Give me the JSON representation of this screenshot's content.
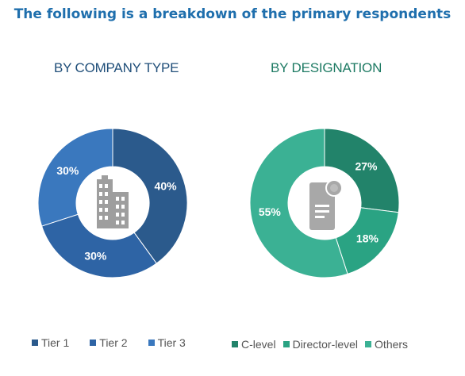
{
  "title": "The following is a breakdown of the primary respondents",
  "colors": {
    "title": "#1f6fad",
    "tier1": "#2b5a8c",
    "tier2": "#2e64a5",
    "tier3": "#3a78be",
    "clevel": "#22836a",
    "director": "#2aa383",
    "others": "#3bb194"
  },
  "chart_data": [
    {
      "type": "pie",
      "title": "BY COMPANY TYPE",
      "center_icon": "office-building-icon",
      "categories": [
        "Tier 1",
        "Tier 2",
        "Tier 3"
      ],
      "values": [
        40,
        30,
        30
      ],
      "labels": [
        "40%",
        "30%",
        "30%"
      ],
      "colors": [
        "#2b5a8c",
        "#2e64a5",
        "#3a78be"
      ],
      "legend": "bottom"
    },
    {
      "type": "pie",
      "title": "BY DESIGNATION",
      "center_icon": "certificate-document-icon",
      "categories": [
        "C-level",
        "Director-level",
        "Others"
      ],
      "values": [
        27,
        18,
        55
      ],
      "labels": [
        "27%",
        "18%",
        "55%"
      ],
      "colors": [
        "#22836a",
        "#2aa383",
        "#3bb194"
      ],
      "legend": "bottom"
    }
  ]
}
